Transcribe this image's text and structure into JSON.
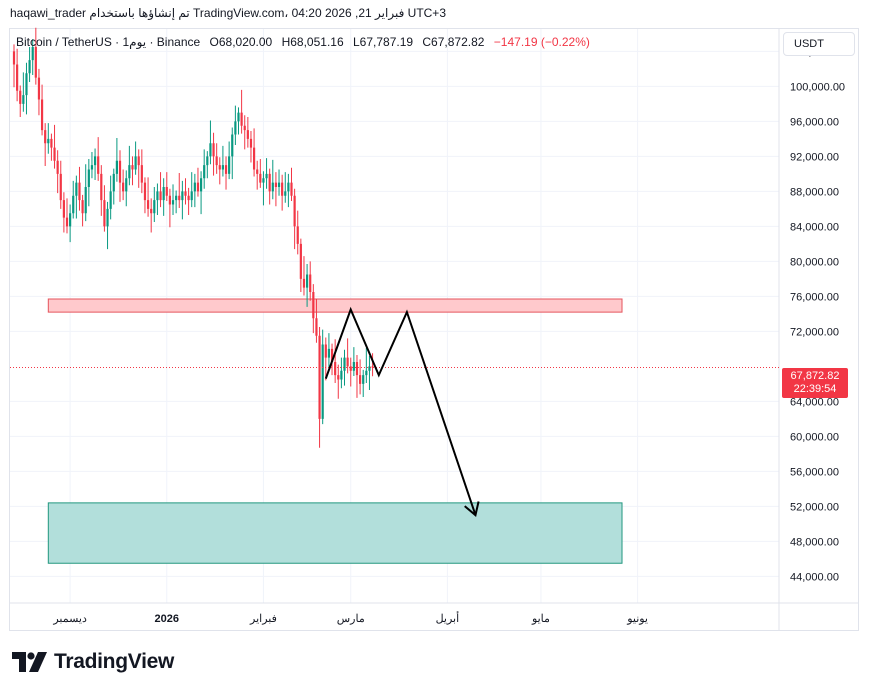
{
  "header": {
    "author": "haqawi_trader",
    "published_text": "تم إنشاؤها باستخدام TradingView.com، 04:20 2026 ,21 فبراير UTC+3"
  },
  "legend": {
    "symbol": "Bitcoin / TetherUS · 1يوم · Binance",
    "open": "O68,020.00",
    "high": "H68,051.16",
    "low": "L67,787.19",
    "close": "C67,872.82",
    "change": "−147.19 (−0.22%)"
  },
  "currency": "USDT",
  "price_label": {
    "price": "67,872.82",
    "countdown": "22:39:54"
  },
  "footer": {
    "logo_text": "TradingView"
  },
  "colors": {
    "up": "#089981",
    "down": "#f23645",
    "resistance_fill": "#ffc9cc",
    "support_fill": "#b2dfdb",
    "projection": "#000000"
  },
  "chart_data": {
    "type": "candlestick",
    "title": "Bitcoin / TetherUS · 1D · Binance",
    "ylim": [
      40500,
      106500
    ],
    "y_ticks": [
      {
        "value": 44000,
        "label": "44,000.00"
      },
      {
        "value": 48000,
        "label": "48,000.00"
      },
      {
        "value": 52000,
        "label": "52,000.00"
      },
      {
        "value": 56000,
        "label": "56,000.00"
      },
      {
        "value": 60000,
        "label": "60,000.00"
      },
      {
        "value": 64000,
        "label": "64,000.00"
      },
      {
        "value": 72000,
        "label": "72,000.00"
      },
      {
        "value": 76000,
        "label": "76,000.00"
      },
      {
        "value": 80000,
        "label": "80,000.00"
      },
      {
        "value": 84000,
        "label": "84,000.00"
      },
      {
        "value": 88000,
        "label": "88,000.00"
      },
      {
        "value": 92000,
        "label": "92,000.00"
      },
      {
        "value": 96000,
        "label": "96,000.00"
      },
      {
        "value": 100000,
        "label": "100,000.00"
      },
      {
        "value": 104000,
        "label": "104,000.00"
      }
    ],
    "x_ticks": [
      {
        "date": "2025-12-01",
        "label": "ديسمبر",
        "bold": false
      },
      {
        "date": "2026-01-01",
        "label": "2026",
        "bold": true
      },
      {
        "date": "2026-02-01",
        "label": "فبراير",
        "bold": false
      },
      {
        "date": "2026-03-01",
        "label": "مارس",
        "bold": false
      },
      {
        "date": "2026-04-01",
        "label": "أبريل",
        "bold": false
      },
      {
        "date": "2026-05-01",
        "label": "مايو",
        "bold": false
      },
      {
        "date": "2026-06-01",
        "label": "يونيو",
        "bold": false
      }
    ],
    "x_start": "2025-11-13",
    "last_close": 67872.82,
    "closes": [
      102500,
      99500,
      98000,
      99000,
      101500,
      103000,
      104500,
      101000,
      98500,
      95000,
      93500,
      94000,
      93000,
      91500,
      90000,
      87000,
      85000,
      84000,
      85500,
      87500,
      89000,
      87000,
      85500,
      88500,
      90500,
      91000,
      92000,
      90000,
      87000,
      84000,
      86000,
      88000,
      90000,
      91500,
      89000,
      88000,
      89500,
      91000,
      90500,
      92000,
      91000,
      89000,
      87000,
      86000,
      85500,
      87000,
      88000,
      87000,
      88500,
      87500,
      86500,
      87000,
      87500,
      87000,
      88000,
      87500,
      87000,
      88000,
      89000,
      88000,
      89500,
      91000,
      92000,
      93500,
      92000,
      91000,
      90500,
      91000,
      90000,
      92000,
      94500,
      96000,
      97000,
      95500,
      95000,
      94000,
      93000,
      90500,
      90000,
      89000,
      89500,
      90000,
      88000,
      89000,
      88500,
      89000,
      87500,
      88000,
      89000,
      87500,
      84000,
      82000,
      78000,
      77000,
      78500,
      76500,
      73500,
      71500,
      62000,
      70500,
      69000,
      70000,
      68500,
      67000,
      66500,
      67500,
      69000,
      68000,
      67500,
      68500,
      67000,
      66000,
      67000,
      67500,
      68000,
      67872.82
    ],
    "resistance_zone": {
      "from": 74200,
      "to": 75700,
      "start": "2025-11-24",
      "end": "2026-05-27"
    },
    "support_zone": {
      "from": 45500,
      "to": 52400,
      "start": "2025-11-24",
      "end": "2026-05-27"
    },
    "projection_path": [
      {
        "date": "2026-02-21",
        "price": 66600
      },
      {
        "date": "2026-03-01",
        "price": 74500
      },
      {
        "date": "2026-03-10",
        "price": 67000
      },
      {
        "date": "2026-03-19",
        "price": 74200
      },
      {
        "date": "2026-04-10",
        "price": 51000
      }
    ]
  }
}
